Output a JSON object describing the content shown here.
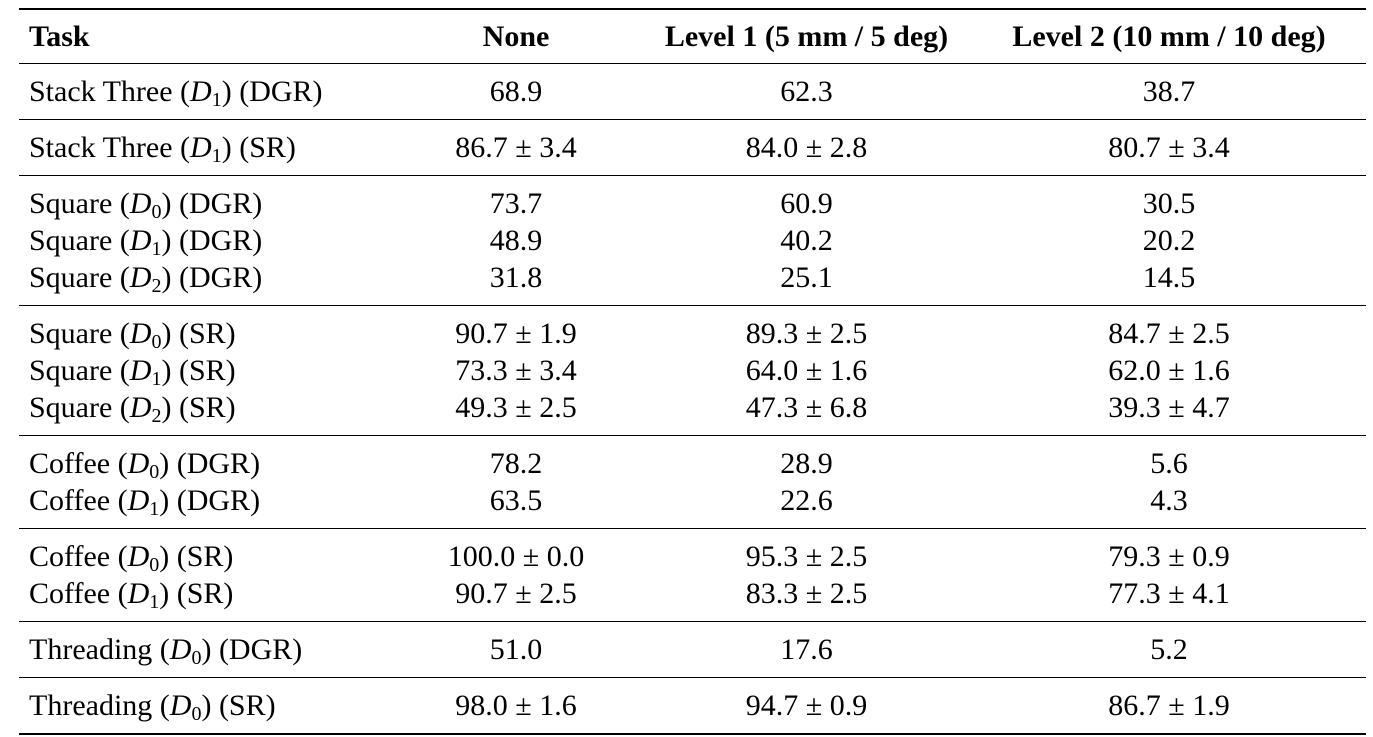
{
  "headers": {
    "task": "Task",
    "none": "None",
    "level1": "Level 1 (5 mm / 5 deg)",
    "level2": "Level 2 (10 mm / 10 deg)"
  },
  "groups": [
    {
      "rows": [
        {
          "task_prefix": "Stack Three (",
          "var": "D",
          "sub": "1",
          "task_suffix": ") (DGR)",
          "none": "68.9",
          "level1": "62.3",
          "level2": "38.7"
        }
      ]
    },
    {
      "rows": [
        {
          "task_prefix": "Stack Three (",
          "var": "D",
          "sub": "1",
          "task_suffix": ") (SR)",
          "none": "86.7 ± 3.4",
          "level1": "84.0 ± 2.8",
          "level2": "80.7 ± 3.4"
        }
      ]
    },
    {
      "rows": [
        {
          "task_prefix": "Square (",
          "var": "D",
          "sub": "0",
          "task_suffix": ") (DGR)",
          "none": "73.7",
          "level1": "60.9",
          "level2": "30.5"
        },
        {
          "task_prefix": "Square (",
          "var": "D",
          "sub": "1",
          "task_suffix": ") (DGR)",
          "none": "48.9",
          "level1": "40.2",
          "level2": "20.2"
        },
        {
          "task_prefix": "Square (",
          "var": "D",
          "sub": "2",
          "task_suffix": ") (DGR)",
          "none": "31.8",
          "level1": "25.1",
          "level2": "14.5"
        }
      ]
    },
    {
      "rows": [
        {
          "task_prefix": "Square (",
          "var": "D",
          "sub": "0",
          "task_suffix": ") (SR)",
          "none": "90.7 ± 1.9",
          "level1": "89.3 ± 2.5",
          "level2": "84.7 ± 2.5"
        },
        {
          "task_prefix": "Square (",
          "var": "D",
          "sub": "1",
          "task_suffix": ") (SR)",
          "none": "73.3 ± 3.4",
          "level1": "64.0 ± 1.6",
          "level2": "62.0 ± 1.6"
        },
        {
          "task_prefix": "Square (",
          "var": "D",
          "sub": "2",
          "task_suffix": ") (SR)",
          "none": "49.3 ± 2.5",
          "level1": "47.3 ± 6.8",
          "level2": "39.3 ± 4.7"
        }
      ]
    },
    {
      "rows": [
        {
          "task_prefix": "Coffee (",
          "var": "D",
          "sub": "0",
          "task_suffix": ") (DGR)",
          "none": "78.2",
          "level1": "28.9",
          "level2": "5.6"
        },
        {
          "task_prefix": "Coffee (",
          "var": "D",
          "sub": "1",
          "task_suffix": ") (DGR)",
          "none": "63.5",
          "level1": "22.6",
          "level2": "4.3"
        }
      ]
    },
    {
      "rows": [
        {
          "task_prefix": "Coffee (",
          "var": "D",
          "sub": "0",
          "task_suffix": ") (SR)",
          "none": "100.0 ± 0.0",
          "level1": "95.3 ± 2.5",
          "level2": "79.3 ± 0.9"
        },
        {
          "task_prefix": "Coffee (",
          "var": "D",
          "sub": "1",
          "task_suffix": ") (SR)",
          "none": "90.7 ± 2.5",
          "level1": "83.3 ± 2.5",
          "level2": "77.3 ± 4.1"
        }
      ]
    },
    {
      "rows": [
        {
          "task_prefix": "Threading (",
          "var": "D",
          "sub": "0",
          "task_suffix": ") (DGR)",
          "none": "51.0",
          "level1": "17.6",
          "level2": "5.2"
        }
      ]
    },
    {
      "rows": [
        {
          "task_prefix": "Threading (",
          "var": "D",
          "sub": "0",
          "task_suffix": ") (SR)",
          "none": "98.0 ± 1.6",
          "level1": "94.7 ± 0.9",
          "level2": "86.7 ± 1.9"
        }
      ]
    }
  ]
}
